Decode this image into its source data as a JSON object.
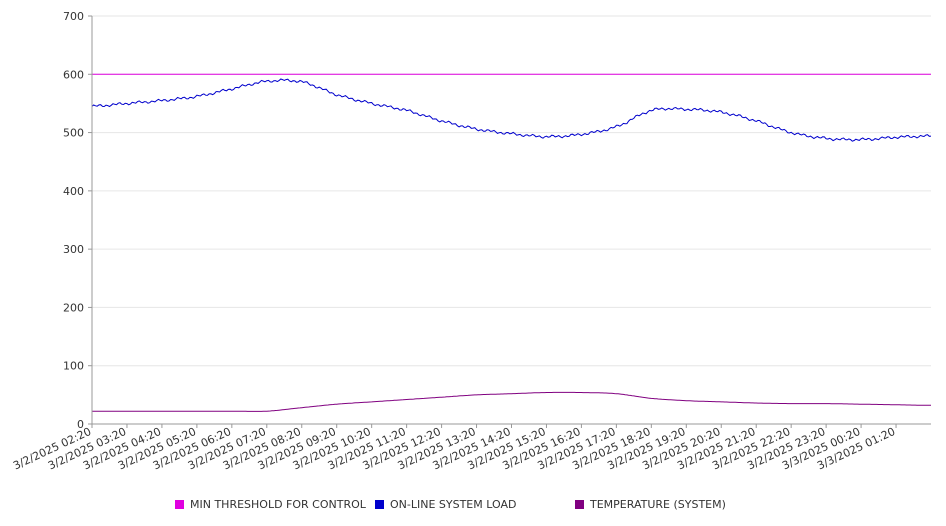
{
  "chart_data": {
    "type": "line",
    "title": "",
    "xlabel": "",
    "ylabel": "",
    "ylim": [
      0,
      700
    ],
    "y_ticks": [
      0,
      100,
      200,
      300,
      400,
      500,
      600,
      700
    ],
    "grid": "horizontal",
    "legend_position": "bottom",
    "x_tick_labels": [
      "3/2/2025 02:20",
      "3/2/2025 03:20",
      "3/2/2025 04:20",
      "3/2/2025 05:20",
      "3/2/2025 06:20",
      "3/2/2025 07:20",
      "3/2/2025 08:20",
      "3/2/2025 09:20",
      "3/2/2025 10:20",
      "3/2/2025 11:20",
      "3/2/2025 12:20",
      "3/2/2025 13:20",
      "3/2/2025 14:20",
      "3/2/2025 15:20",
      "3/2/2025 16:20",
      "3/2/2025 17:20",
      "3/2/2025 18:20",
      "3/2/2025 19:20",
      "3/2/2025 20:20",
      "3/2/2025 21:20",
      "3/2/2025 22:20",
      "3/2/2025 23:20",
      "3/3/2025 00:20",
      "3/3/2025 01:20"
    ],
    "x": [
      "3/2/2025 02:20",
      "3/2/2025 03:20",
      "3/2/2025 04:20",
      "3/2/2025 05:20",
      "3/2/2025 06:20",
      "3/2/2025 07:20",
      "3/2/2025 08:20",
      "3/2/2025 09:20",
      "3/2/2025 10:20",
      "3/2/2025 11:20",
      "3/2/2025 12:20",
      "3/2/2025 13:20",
      "3/2/2025 14:20",
      "3/2/2025 15:20",
      "3/2/2025 16:20",
      "3/2/2025 17:20",
      "3/2/2025 18:20",
      "3/2/2025 19:20",
      "3/2/2025 20:20",
      "3/2/2025 21:20",
      "3/2/2025 22:20",
      "3/2/2025 23:20",
      "3/3/2025 00:20",
      "3/3/2025 01:20",
      "3/3/2025 02:20"
    ],
    "series": [
      {
        "name": "MIN THRESHOLD FOR CONTROL",
        "color": "#e000e0",
        "values": [
          600,
          600,
          600,
          600,
          600,
          600,
          600,
          600,
          600,
          600,
          600,
          600,
          600,
          600,
          600,
          600,
          600,
          600,
          600,
          600,
          600,
          600,
          600,
          600,
          600
        ]
      },
      {
        "name": "ON-LINE SYSTEM LOAD",
        "color": "#0000cc",
        "values": [
          545,
          550,
          555,
          562,
          575,
          588,
          587,
          565,
          550,
          538,
          520,
          506,
          498,
          493,
          497,
          510,
          538,
          540,
          535,
          520,
          500,
          490,
          488,
          492,
          494
        ]
      },
      {
        "name": "TEMPERATURE (SYSTEM)",
        "color": "#800080",
        "values": [
          22,
          22,
          22,
          22,
          22,
          22,
          28,
          34,
          38,
          42,
          46,
          50,
          52,
          54,
          54,
          52,
          44,
          40,
          38,
          36,
          35,
          35,
          34,
          33,
          32
        ]
      }
    ]
  }
}
